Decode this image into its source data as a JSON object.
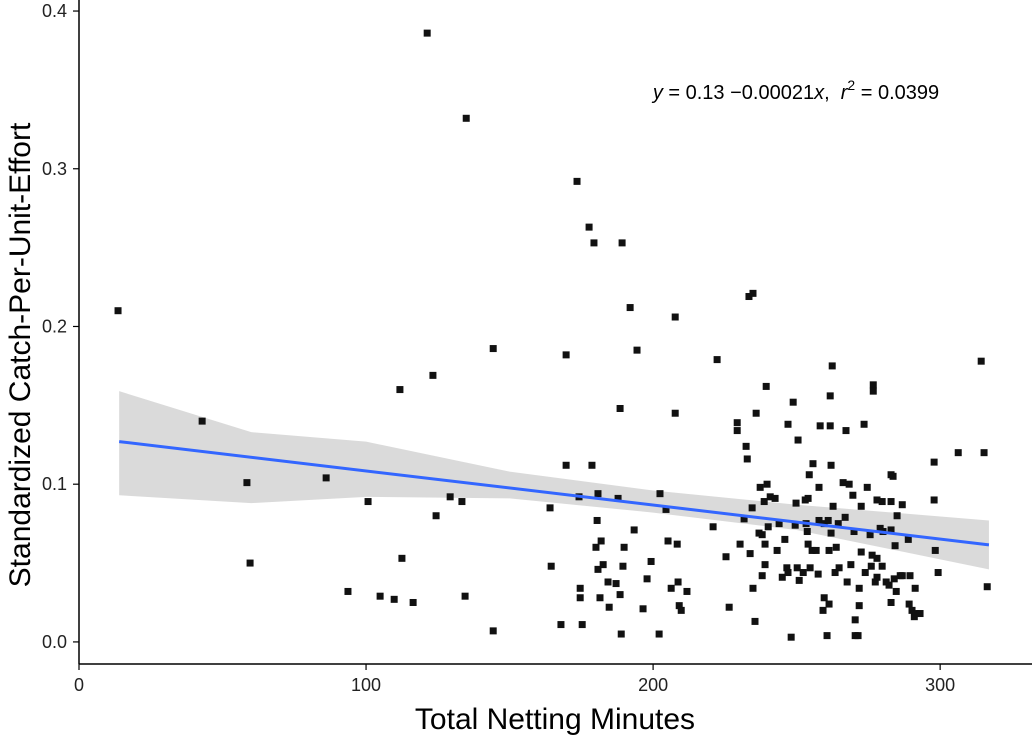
{
  "chart_data": {
    "type": "scatter",
    "x_label": "Total Netting Minutes",
    "y_label": "Standardized Catch-Per-Unit-Effort",
    "annotation": [
      {
        "text": "y",
        "italic": true
      },
      {
        "text": " = 0.13 −0.00021"
      },
      {
        "text": "x",
        "italic": true
      },
      {
        "text": ",  "
      },
      {
        "text": "r",
        "italic": true
      },
      {
        "text": "2",
        "superscript": true
      },
      {
        "text": " = 0.0399"
      }
    ],
    "xlim": [
      0,
      332
    ],
    "ylim": [
      -0.014,
      0.407
    ],
    "xticks": [
      0,
      100,
      200,
      300
    ],
    "yticks": [
      {
        "value": 0,
        "label": "0.0"
      },
      0.1,
      0.2,
      0.3,
      0.4
    ],
    "grid": false,
    "color": "#111111",
    "fit_color": "#3366ff",
    "band_color": "#d4d4d4",
    "fit_line": {
      "x": [
        14,
        317
      ],
      "y": [
        0.127,
        0.0615
      ]
    },
    "band": {
      "x": [
        14,
        60,
        100,
        150,
        200,
        250,
        317
      ],
      "lower": [
        0.093,
        0.088,
        0.092,
        0.091,
        0.082,
        0.071,
        0.046
      ],
      "upper": [
        0.159,
        0.133,
        0.127,
        0.108,
        0.096,
        0.087,
        0.077
      ]
    },
    "x": [
      13.6,
      42.9,
      58.5,
      59.6,
      86.1,
      100.7,
      93.7,
      104.9,
      109.8,
      116.4,
      112.5,
      111.8,
      121.3,
      123.3,
      124.4,
      129.3,
      133.4,
      134.5,
      134.9,
      144.3,
      144.3,
      164.1,
      164.5,
      169.7,
      169.7,
      167.9,
      173.5,
      174.2,
      174.6,
      174.6,
      175.3,
      177.7,
      178.7,
      179.4,
      180.1,
      180.5,
      180.8,
      180.8,
      181.5,
      181.9,
      182.6,
      184.3,
      184.7,
      187.1,
      187.8,
      188.5,
      188.9,
      188.5,
      189.2,
      189.5,
      189.9,
      192.0,
      193.4,
      194.4,
      196.5,
      197.9,
      199.3,
      202.4,
      202.1,
      204.5,
      205.2,
      206.3,
      207.7,
      207.7,
      208.4,
      208.7,
      209.1,
      209.8,
      211.8,
      222.3,
      220.9,
      225.4,
      226.5,
      229.3,
      229.3,
      230.3,
      231.7,
      232.4,
      232.8,
      233.4,
      234.8,
      233.8,
      234.5,
      234.8,
      235.9,
      235.5,
      236.9,
      237.3,
      238.0,
      238.0,
      238.7,
      239.0,
      239.0,
      239.4,
      239.7,
      240.1,
      240.8,
      242.5,
      243.2,
      243.9,
      245.0,
      247.0,
      245.9,
      246.6,
      247.0,
      248.1,
      248.8,
      249.5,
      249.8,
      250.2,
      250.5,
      250.9,
      252.3,
      253.0,
      253.3,
      253.7,
      254.0,
      254.0,
      254.4,
      254.7,
      255.7,
      255.4,
      256.8,
      257.5,
      257.8,
      257.8,
      258.2,
      259.2,
      259.6,
      259.6,
      260.6,
      261.0,
      261.3,
      261.3,
      261.7,
      261.7,
      262.0,
      262.0,
      262.4,
      262.7,
      263.4,
      263.8,
      264.5,
      264.8,
      266.2,
      266.9,
      267.2,
      267.6,
      268.3,
      268.9,
      269.6,
      270.0,
      270.4,
      270.4,
      271.4,
      271.8,
      271.8,
      272.5,
      272.5,
      273.5,
      273.9,
      274.6,
      275.6,
      276.0,
      276.3,
      276.7,
      276.7,
      277.4,
      278.0,
      278.0,
      278.0,
      279.1,
      279.8,
      279.8,
      280.1,
      281.2,
      282.2,
      282.9,
      282.9,
      282.9,
      282.9,
      283.6,
      284.0,
      284.3,
      284.7,
      285.0,
      286.1,
      286.8,
      286.8,
      288.9,
      289.2,
      289.5,
      290.2,
      291.0,
      291.3,
      291.6,
      293.0,
      297.9,
      297.9,
      298.3,
      299.3,
      306.3,
      314.3,
      315.3,
      316.4
    ],
    "y": [
      0.21,
      0.14,
      0.101,
      0.05,
      0.104,
      0.089,
      0.032,
      0.029,
      0.027,
      0.025,
      0.053,
      0.16,
      0.386,
      0.169,
      0.08,
      0.092,
      0.089,
      0.029,
      0.332,
      0.007,
      0.186,
      0.085,
      0.048,
      0.182,
      0.112,
      0.011,
      0.292,
      0.092,
      0.034,
      0.028,
      0.011,
      0.263,
      0.112,
      0.253,
      0.06,
      0.077,
      0.094,
      0.046,
      0.028,
      0.064,
      0.049,
      0.038,
      0.022,
      0.037,
      0.091,
      0.148,
      0.005,
      0.03,
      0.253,
      0.048,
      0.06,
      0.212,
      0.071,
      0.185,
      0.021,
      0.04,
      0.051,
      0.094,
      0.005,
      0.084,
      0.064,
      0.034,
      0.206,
      0.145,
      0.062,
      0.038,
      0.023,
      0.02,
      0.032,
      0.179,
      0.073,
      0.054,
      0.022,
      0.139,
      0.134,
      0.062,
      0.078,
      0.124,
      0.116,
      0.219,
      0.221,
      0.056,
      0.085,
      0.034,
      0.145,
      0.013,
      0.069,
      0.098,
      0.068,
      0.042,
      0.089,
      0.062,
      0.049,
      0.162,
      0.1,
      0.073,
      0.092,
      0.091,
      0.058,
      0.075,
      0.041,
      0.138,
      0.065,
      0.047,
      0.044,
      0.003,
      0.152,
      0.074,
      0.088,
      0.047,
      0.128,
      0.039,
      0.044,
      0.09,
      0.075,
      0.07,
      0.091,
      0.062,
      0.106,
      0.047,
      0.113,
      0.058,
      0.058,
      0.043,
      0.098,
      0.077,
      0.137,
      0.02,
      0.028,
      0.075,
      0.004,
      0.077,
      0.058,
      0.024,
      0.156,
      0.137,
      0.112,
      0.069,
      0.175,
      0.086,
      0.044,
      0.06,
      0.075,
      0.047,
      0.101,
      0.079,
      0.134,
      0.038,
      0.1,
      0.049,
      0.093,
      0.07,
      0.014,
      0.004,
      0.004,
      0.034,
      0.023,
      0.057,
      0.086,
      0.138,
      0.044,
      0.098,
      0.068,
      0.048,
      0.055,
      0.163,
      0.159,
      0.038,
      0.09,
      0.053,
      0.041,
      0.072,
      0.089,
      0.048,
      0.07,
      0.038,
      0.036,
      0.106,
      0.089,
      0.071,
      0.025,
      0.105,
      0.04,
      0.061,
      0.032,
      0.08,
      0.042,
      0.087,
      0.042,
      0.065,
      0.024,
      0.042,
      0.02,
      0.016,
      0.034,
      0.018,
      0.018,
      0.114,
      0.09,
      0.058,
      0.044,
      0.12,
      0.178,
      0.12,
      0.035
    ]
  }
}
